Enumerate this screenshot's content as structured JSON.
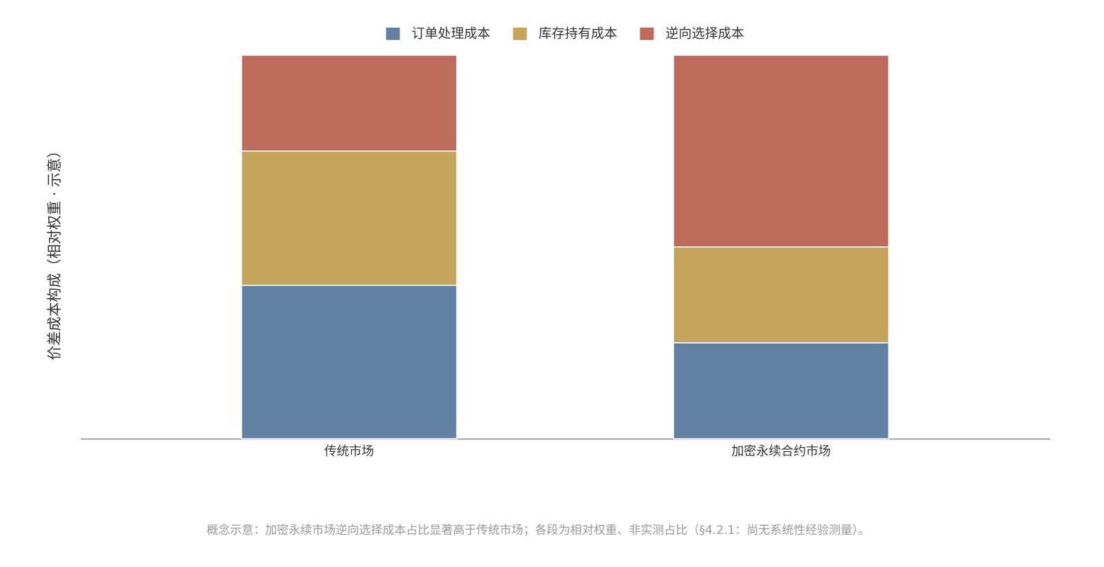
{
  "chart_data": {
    "type": "stacked_bar",
    "y_label": "价差成本构成（相对权重 · 示意）",
    "categories": [
      "传统市场",
      "加密永续合约市场"
    ],
    "series": [
      {
        "name": "订单处理成本",
        "color": "#6181a4",
        "values": [
          40,
          25
        ]
      },
      {
        "name": "库存持有成本",
        "color": "#c4a55b",
        "values": [
          35,
          25
        ]
      },
      {
        "name": "逆向选择成本",
        "color": "#bd6c5b",
        "values": [
          25,
          50
        ]
      }
    ],
    "ylim": [
      0,
      100
    ],
    "caption": "概念示意：加密永续市场逆向选择成本占比显著高于传统市场；各段为相对权重、非实测占比（§4.2.1：尚无系统性经验测量）。"
  }
}
